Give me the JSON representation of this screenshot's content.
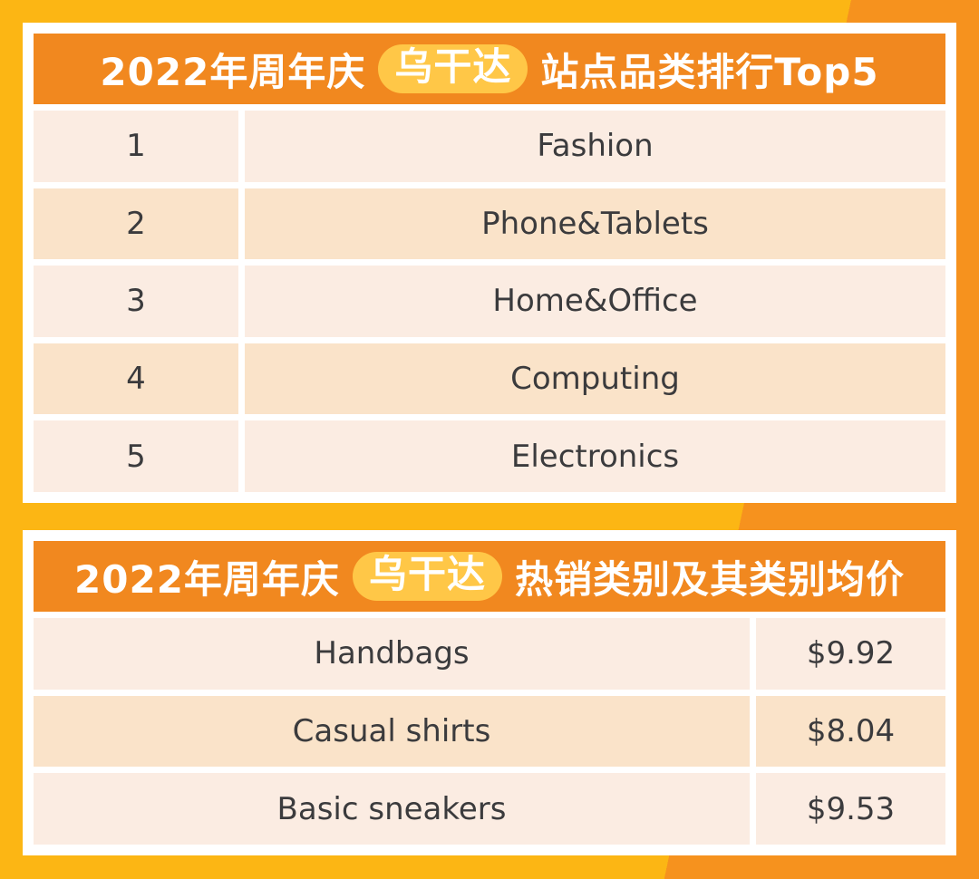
{
  "colors": {
    "bg_yellow": "#FCB614",
    "bg_orange": "#F6921E",
    "header_orange": "#F1881F",
    "badge_yellow": "#FFC747",
    "row_light": "#FBECE2",
    "row_dark": "#FAE3C9",
    "text_dark": "#3B3B3D"
  },
  "chart_data": [
    {
      "type": "table",
      "title": "2022年周年庆 乌干达 站点品类排行Top5",
      "title_parts": {
        "prefix": "2022年周年庆",
        "badge": "乌干达",
        "suffix": "站点品类排行Top5"
      },
      "rows": [
        [
          "1",
          "Fashion"
        ],
        [
          "2",
          "Phone&Tablets"
        ],
        [
          "3",
          "Home&Office"
        ],
        [
          "4",
          "Computing"
        ],
        [
          "5",
          "Electronics"
        ]
      ]
    },
    {
      "type": "table",
      "title": "2022年周年庆 乌干达 热销类别及其类别均价",
      "title_parts": {
        "prefix": "2022年周年庆",
        "badge": "乌干达",
        "suffix": "热销类别及其类别均价"
      },
      "rows": [
        [
          "Handbags",
          "$9.92"
        ],
        [
          "Casual shirts",
          "$8.04"
        ],
        [
          "Basic sneakers",
          "$9.53"
        ]
      ]
    }
  ]
}
